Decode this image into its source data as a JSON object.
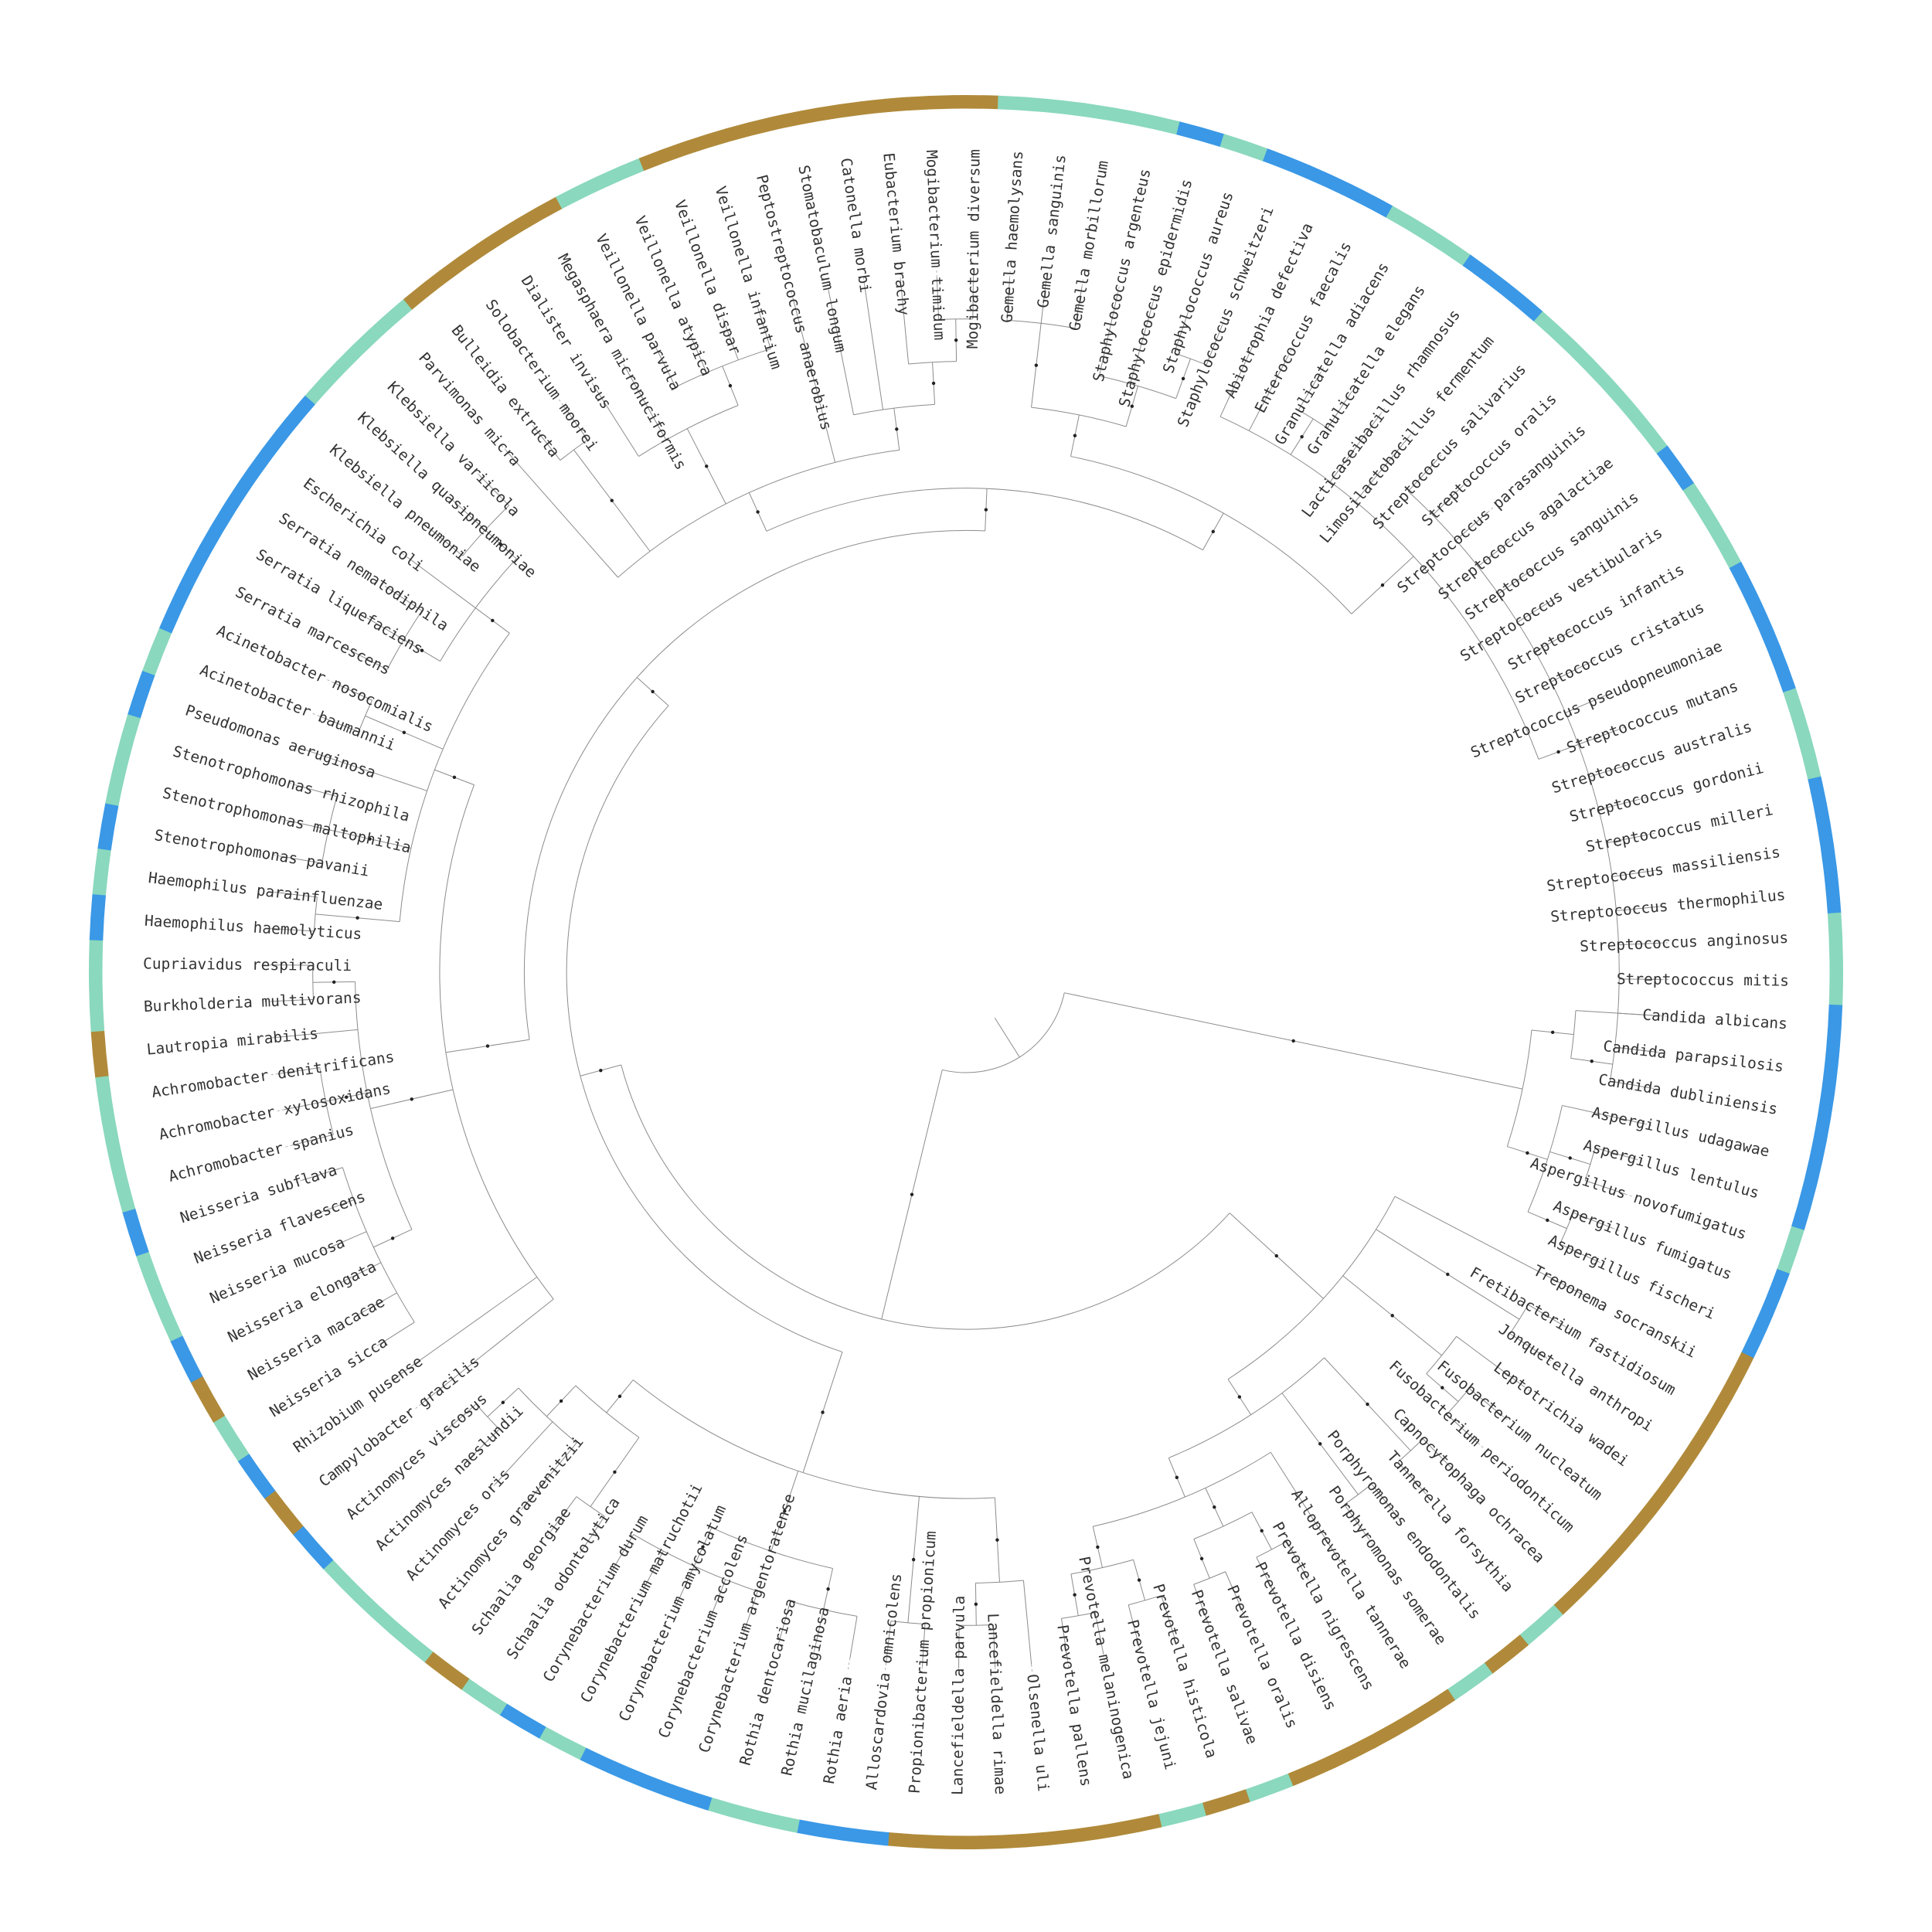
{
  "colors": {
    "brown": "#b08a3a",
    "teal": "#8ad8bd",
    "blue": "#3a98e6"
  },
  "tree": {
    "type": "circular-dendrogram",
    "tips": [
      {
        "label": "Candida albicans",
        "color": "blue"
      },
      {
        "label": "Candida parapsilosis",
        "color": "blue"
      },
      {
        "label": "Candida dubliniensis",
        "color": "blue"
      },
      {
        "label": "Aspergillus udagawae",
        "color": "blue"
      },
      {
        "label": "Aspergillus lentulus",
        "color": "blue"
      },
      {
        "label": "Aspergillus novofumigatus",
        "color": "teal"
      },
      {
        "label": "Aspergillus fumigatus",
        "color": "blue"
      },
      {
        "label": "Aspergillus fischeri",
        "color": "blue"
      },
      {
        "label": "Treponema socranskii",
        "color": "brown"
      },
      {
        "label": "Fretibacterium fastidiosum",
        "color": "brown"
      },
      {
        "label": "Jonquetella anthropi",
        "color": "brown"
      },
      {
        "label": "Leptotrichia wadei",
        "color": "brown"
      },
      {
        "label": "Fusobacterium nucleatum",
        "color": "brown"
      },
      {
        "label": "Fusobacterium periodonticum",
        "color": "brown"
      },
      {
        "label": "Capnocytophaga ochracea",
        "color": "brown"
      },
      {
        "label": "Tannerella forsythia",
        "color": "teal"
      },
      {
        "label": "Porphyromonas endodontalis",
        "color": "brown"
      },
      {
        "label": "Porphyromonas somerae",
        "color": "teal"
      },
      {
        "label": "Alloprevotella tannerae",
        "color": "brown"
      },
      {
        "label": "Prevotella nigrescens",
        "color": "brown"
      },
      {
        "label": "Prevotella disiens",
        "color": "brown"
      },
      {
        "label": "Prevotella oralis",
        "color": "brown"
      },
      {
        "label": "Prevotella salivae",
        "color": "teal"
      },
      {
        "label": "Prevotella histicola",
        "color": "brown"
      },
      {
        "label": "Prevotella jejuni",
        "color": "teal"
      },
      {
        "label": "Prevotella melaninogenica",
        "color": "brown"
      },
      {
        "label": "Prevotella pallens",
        "color": "brown"
      },
      {
        "label": "Olsenella uli",
        "color": "brown"
      },
      {
        "label": "Lancefieldella rimae",
        "color": "brown"
      },
      {
        "label": "Lancefieldella parvula",
        "color": "brown"
      },
      {
        "label": "Propionibacterium propionicum",
        "color": "brown"
      },
      {
        "label": "Alloscardovia omnicolens",
        "color": "blue"
      },
      {
        "label": "Rothia aeria",
        "color": "blue"
      },
      {
        "label": "Rothia mucilaginosa",
        "color": "teal"
      },
      {
        "label": "Rothia dentocariosa",
        "color": "teal"
      },
      {
        "label": "Corynebacterium argentoratense",
        "color": "blue"
      },
      {
        "label": "Corynebacterium accolens",
        "color": "blue"
      },
      {
        "label": "Corynebacterium amycolatum",
        "color": "blue"
      },
      {
        "label": "Corynebacterium matruchotii",
        "color": "teal"
      },
      {
        "label": "Corynebacterium durum",
        "color": "blue"
      },
      {
        "label": "Schaalia odontolytica",
        "color": "teal"
      },
      {
        "label": "Schaalia georgiae",
        "color": "brown"
      },
      {
        "label": "Actinomyces graevenitzii",
        "color": "teal"
      },
      {
        "label": "Actinomyces oris",
        "color": "teal"
      },
      {
        "label": "Actinomyces naeslundii",
        "color": "teal"
      },
      {
        "label": "Actinomyces viscosus",
        "color": "blue"
      },
      {
        "label": "Campylobacter gracilis",
        "color": "brown"
      },
      {
        "label": "Rhizobium pusense",
        "color": "blue"
      },
      {
        "label": "Neisseria sicca",
        "color": "teal"
      },
      {
        "label": "Neisseria macacae",
        "color": "brown"
      },
      {
        "label": "Neisseria elongata",
        "color": "blue"
      },
      {
        "label": "Neisseria mucosa",
        "color": "teal"
      },
      {
        "label": "Neisseria flavescens",
        "color": "teal"
      },
      {
        "label": "Neisseria subflava",
        "color": "blue"
      },
      {
        "label": "Achromobacter spanius",
        "color": "teal"
      },
      {
        "label": "Achromobacter xylosoxidans",
        "color": "teal"
      },
      {
        "label": "Achromobacter denitrificans",
        "color": "teal"
      },
      {
        "label": "Lautropia mirabilis",
        "color": "brown"
      },
      {
        "label": "Burkholderia multivorans",
        "color": "teal"
      },
      {
        "label": "Cupriavidus respiraculi",
        "color": "teal"
      },
      {
        "label": "Haemophilus haemolyticus",
        "color": "blue"
      },
      {
        "label": "Haemophilus parainfluenzae",
        "color": "teal"
      },
      {
        "label": "Stenotrophomonas pavanii",
        "color": "blue"
      },
      {
        "label": "Stenotrophomonas maltophilia",
        "color": "teal"
      },
      {
        "label": "Stenotrophomonas rhizophila",
        "color": "teal"
      },
      {
        "label": "Pseudomonas aeruginosa",
        "color": "blue"
      },
      {
        "label": "Acinetobacter baumannii",
        "color": "teal"
      },
      {
        "label": "Acinetobacter nosocomialis",
        "color": "blue"
      },
      {
        "label": "Serratia marcescens",
        "color": "blue"
      },
      {
        "label": "Serratia liquefaciens",
        "color": "blue"
      },
      {
        "label": "Serratia nematodiphila",
        "color": "blue"
      },
      {
        "label": "Escherichia coli",
        "color": "blue"
      },
      {
        "label": "Klebsiella pneumoniae",
        "color": "blue"
      },
      {
        "label": "Klebsiella quasipneumoniae",
        "color": "teal"
      },
      {
        "label": "Klebsiella variicola",
        "color": "teal"
      },
      {
        "label": "Parvimonas micra",
        "color": "teal"
      },
      {
        "label": "Bulleidia extructa",
        "color": "brown"
      },
      {
        "label": "Solobacterium moorei",
        "color": "brown"
      },
      {
        "label": "Dialister invisus",
        "color": "brown"
      },
      {
        "label": "Megasphaera micronuciformis",
        "color": "brown"
      },
      {
        "label": "Veillonella parvula",
        "color": "teal"
      },
      {
        "label": "Veillonella atypica",
        "color": "teal"
      },
      {
        "label": "Veillonella dispar",
        "color": "brown"
      },
      {
        "label": "Veillonella infantium",
        "color": "brown"
      },
      {
        "label": "Peptostreptococcus anaerobius",
        "color": "brown"
      },
      {
        "label": "Stomatobaculum longum",
        "color": "brown"
      },
      {
        "label": "Catonella morbi",
        "color": "brown"
      },
      {
        "label": "Eubacterium brachy",
        "color": "brown"
      },
      {
        "label": "Mogibacterium timidum",
        "color": "brown"
      },
      {
        "label": "Mogibacterium diversum",
        "color": "brown"
      },
      {
        "label": "Gemella haemolysans",
        "color": "teal"
      },
      {
        "label": "Gemella sanguinis",
        "color": "teal"
      },
      {
        "label": "Gemella morbillorum",
        "color": "teal"
      },
      {
        "label": "Staphylococcus argenteus",
        "color": "teal"
      },
      {
        "label": "Staphylococcus epidermidis",
        "color": "blue"
      },
      {
        "label": "Staphylococcus aureus",
        "color": "teal"
      },
      {
        "label": "Staphylococcus schweitzeri",
        "color": "blue"
      },
      {
        "label": "Abiotrophia defectiva",
        "color": "blue"
      },
      {
        "label": "Enterococcus faecalis",
        "color": "blue"
      },
      {
        "label": "Granulicatella adiacens",
        "color": "teal"
      },
      {
        "label": "Granulicatella elegans",
        "color": "teal"
      },
      {
        "label": "Lacticaseibacillus rhamnosus",
        "color": "blue"
      },
      {
        "label": "Limosilactobacillus fermentum",
        "color": "blue"
      },
      {
        "label": "Streptococcus salivarius",
        "color": "teal"
      },
      {
        "label": "Streptococcus oralis",
        "color": "teal"
      },
      {
        "label": "Streptococcus parasanguinis",
        "color": "teal"
      },
      {
        "label": "Streptococcus agalactiae",
        "color": "teal"
      },
      {
        "label": "Streptococcus sanguinis",
        "color": "blue"
      },
      {
        "label": "Streptococcus vestibularis",
        "color": "teal"
      },
      {
        "label": "Streptococcus infantis",
        "color": "teal"
      },
      {
        "label": "Streptococcus cristatus",
        "color": "blue"
      },
      {
        "label": "Streptococcus pseudopneumoniae",
        "color": "blue"
      },
      {
        "label": "Streptococcus mutans",
        "color": "blue"
      },
      {
        "label": "Streptococcus australis",
        "color": "teal"
      },
      {
        "label": "Streptococcus gordonii",
        "color": "teal"
      },
      {
        "label": "Streptococcus milleri",
        "color": "blue"
      },
      {
        "label": "Streptococcus massiliensis",
        "color": "blue"
      },
      {
        "label": "Streptococcus thermophilus",
        "color": "blue"
      },
      {
        "label": "Streptococcus anginosus",
        "color": "teal"
      },
      {
        "label": "Streptococcus mitis",
        "color": "teal"
      }
    ]
  }
}
